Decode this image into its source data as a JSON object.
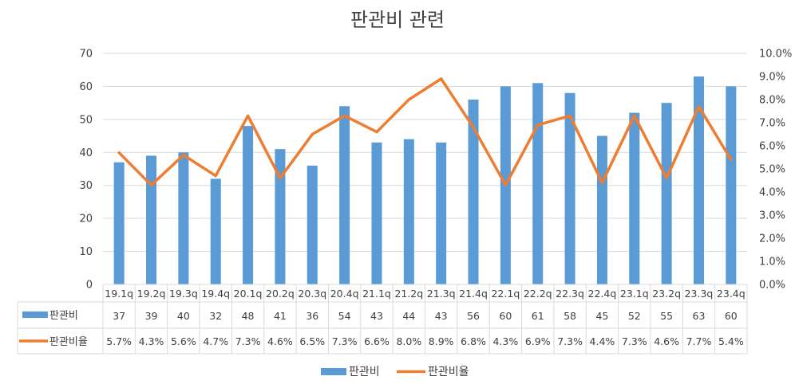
{
  "chart_data": {
    "type": "bar",
    "title": "판관비 관련",
    "categories": [
      "19.1q",
      "19.2q",
      "19.3q",
      "19.4q",
      "20.1q",
      "20.2q",
      "20.3q",
      "20.4q",
      "21.1q",
      "21.2q",
      "21.3q",
      "21.4q",
      "22.1q",
      "22.2q",
      "22.3q",
      "22.4q",
      "23.1q",
      "23.2q",
      "23.3q",
      "23.4q"
    ],
    "series": [
      {
        "name": "판관비",
        "type": "bar",
        "axis": "left",
        "color": "#5B9BD5",
        "values": [
          37,
          39,
          40,
          32,
          48,
          41,
          36,
          54,
          43,
          44,
          43,
          56,
          60,
          61,
          58,
          45,
          52,
          55,
          63,
          60
        ],
        "labels": [
          "37",
          "39",
          "40",
          "32",
          "48",
          "41",
          "36",
          "54",
          "43",
          "44",
          "43",
          "56",
          "60",
          "61",
          "58",
          "45",
          "52",
          "55",
          "63",
          "60"
        ]
      },
      {
        "name": "판관비율",
        "type": "line",
        "axis": "right",
        "color": "#ED7D31",
        "values": [
          5.7,
          4.3,
          5.6,
          4.7,
          7.3,
          4.6,
          6.5,
          7.3,
          6.6,
          8.0,
          8.9,
          6.8,
          4.3,
          6.9,
          7.3,
          4.4,
          7.3,
          4.6,
          7.7,
          5.4
        ],
        "labels": [
          "5.7%",
          "4.3%",
          "5.6%",
          "4.7%",
          "7.3%",
          "4.6%",
          "6.5%",
          "7.3%",
          "6.6%",
          "8.0%",
          "8.9%",
          "6.8%",
          "4.3%",
          "6.9%",
          "7.3%",
          "4.4%",
          "7.3%",
          "4.6%",
          "7.7%",
          "5.4%"
        ]
      }
    ],
    "y_left": {
      "min": 0,
      "max": 70,
      "ticks": [
        "0",
        "10",
        "20",
        "30",
        "40",
        "50",
        "60",
        "70"
      ]
    },
    "y_right": {
      "min": 0,
      "max": 10,
      "ticks": [
        "0.0%",
        "1.0%",
        "2.0%",
        "3.0%",
        "4.0%",
        "5.0%",
        "6.0%",
        "7.0%",
        "8.0%",
        "9.0%",
        "10.0%"
      ]
    },
    "grid": true,
    "data_table": true,
    "legend": {
      "position": "bottom",
      "items": [
        "판관비",
        "판관비율"
      ]
    }
  }
}
